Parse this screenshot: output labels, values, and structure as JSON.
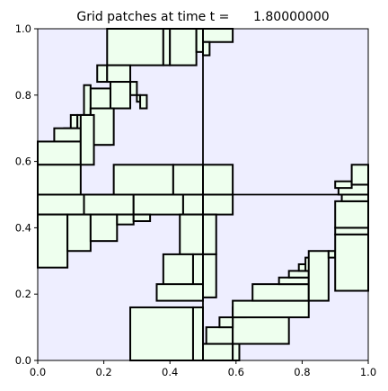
{
  "chart_data": {
    "type": "patches",
    "title": "Grid patches at time t =      1.80000000",
    "xlim": [
      0,
      1
    ],
    "ylim": [
      0,
      1
    ],
    "x_ticks": [
      "0.0",
      "0.2",
      "0.4",
      "0.6",
      "0.8",
      "1.0"
    ],
    "y_ticks": [
      "0.0",
      "0.2",
      "0.4",
      "0.6",
      "0.8",
      "1.0"
    ],
    "grid": false,
    "background_color": "#eeeeff",
    "patch_color": "#eeffee",
    "edge_color": "#000000",
    "coarse_lines": {
      "x": [
        0.5
      ],
      "y": [
        0.5
      ]
    },
    "patches": [
      [
        0.21,
        0.38,
        0.89,
        1.0
      ],
      [
        0.38,
        0.4,
        0.89,
        1.0
      ],
      [
        0.4,
        0.48,
        0.89,
        1.0
      ],
      [
        0.48,
        0.5,
        0.93,
        1.0
      ],
      [
        0.5,
        0.59,
        0.96,
        1.0
      ],
      [
        0.5,
        0.52,
        0.92,
        0.96
      ],
      [
        0.18,
        0.21,
        0.84,
        0.89
      ],
      [
        0.21,
        0.28,
        0.84,
        0.89
      ],
      [
        0.28,
        0.3,
        0.8,
        0.84
      ],
      [
        0.3,
        0.31,
        0.78,
        0.8
      ],
      [
        0.31,
        0.33,
        0.76,
        0.8
      ],
      [
        0.22,
        0.28,
        0.76,
        0.84
      ],
      [
        0.14,
        0.16,
        0.74,
        0.83
      ],
      [
        0.16,
        0.22,
        0.65,
        0.82
      ],
      [
        0.16,
        0.23,
        0.65,
        0.76
      ],
      [
        0.1,
        0.12,
        0.7,
        0.74
      ],
      [
        0.08,
        0.1,
        0.66,
        0.7
      ],
      [
        0.12,
        0.14,
        0.66,
        0.74
      ],
      [
        0.05,
        0.13,
        0.66,
        0.7
      ],
      [
        0.0,
        0.13,
        0.59,
        0.66
      ],
      [
        0.13,
        0.17,
        0.59,
        0.74
      ],
      [
        0.0,
        0.13,
        0.5,
        0.59
      ],
      [
        0.23,
        0.41,
        0.5,
        0.59
      ],
      [
        0.41,
        0.5,
        0.5,
        0.59
      ],
      [
        0.5,
        0.59,
        0.5,
        0.59
      ],
      [
        0.0,
        0.14,
        0.44,
        0.5
      ],
      [
        0.14,
        0.29,
        0.44,
        0.5
      ],
      [
        0.29,
        0.44,
        0.44,
        0.5
      ],
      [
        0.44,
        0.5,
        0.44,
        0.5
      ],
      [
        0.5,
        0.59,
        0.44,
        0.5
      ],
      [
        0.0,
        0.09,
        0.28,
        0.44
      ],
      [
        0.09,
        0.16,
        0.33,
        0.44
      ],
      [
        0.16,
        0.24,
        0.36,
        0.44
      ],
      [
        0.24,
        0.29,
        0.41,
        0.44
      ],
      [
        0.29,
        0.34,
        0.42,
        0.44
      ],
      [
        0.43,
        0.5,
        0.32,
        0.44
      ],
      [
        0.5,
        0.54,
        0.32,
        0.44
      ],
      [
        0.38,
        0.47,
        0.19,
        0.32
      ],
      [
        0.47,
        0.5,
        0.19,
        0.32
      ],
      [
        0.5,
        0.54,
        0.19,
        0.32
      ],
      [
        0.36,
        0.5,
        0.18,
        0.23
      ],
      [
        0.28,
        0.47,
        0.0,
        0.16
      ],
      [
        0.47,
        0.5,
        0.0,
        0.16
      ],
      [
        0.5,
        0.59,
        0.0,
        0.05
      ],
      [
        0.59,
        0.61,
        0.0,
        0.05
      ],
      [
        0.51,
        0.59,
        0.05,
        0.1
      ],
      [
        0.59,
        0.76,
        0.05,
        0.13
      ],
      [
        0.55,
        0.59,
        0.1,
        0.13
      ],
      [
        0.59,
        0.63,
        0.13,
        0.16
      ],
      [
        0.59,
        0.82,
        0.13,
        0.18
      ],
      [
        0.65,
        0.82,
        0.18,
        0.23
      ],
      [
        0.73,
        0.82,
        0.23,
        0.25
      ],
      [
        0.76,
        0.82,
        0.25,
        0.27
      ],
      [
        0.79,
        0.82,
        0.27,
        0.29
      ],
      [
        0.81,
        0.84,
        0.27,
        0.31
      ],
      [
        0.82,
        0.88,
        0.18,
        0.33
      ],
      [
        0.88,
        0.9,
        0.31,
        0.33
      ],
      [
        0.9,
        1.0,
        0.21,
        0.38
      ],
      [
        0.9,
        1.0,
        0.38,
        0.4
      ],
      [
        0.9,
        1.0,
        0.4,
        0.48
      ],
      [
        0.92,
        1.0,
        0.48,
        0.5
      ],
      [
        0.91,
        1.0,
        0.5,
        0.53
      ],
      [
        0.9,
        0.95,
        0.52,
        0.54
      ],
      [
        0.95,
        1.0,
        0.53,
        0.59
      ]
    ]
  }
}
